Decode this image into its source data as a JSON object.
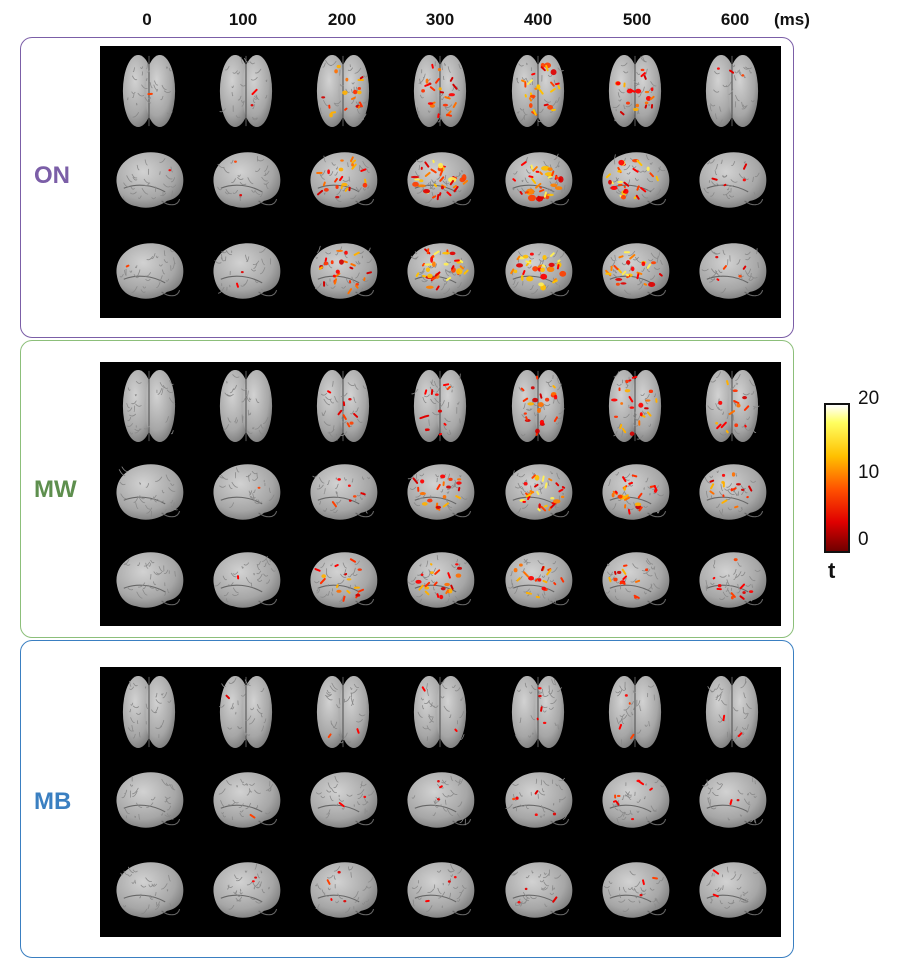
{
  "time_labels": [
    "0",
    "100",
    "200",
    "300",
    "400",
    "500",
    "600"
  ],
  "time_unit": "(ms)",
  "conditions": [
    {
      "label": "ON",
      "color": "#7b5ea7",
      "activation": [
        [
          0.02,
          0.05,
          0.45,
          0.55,
          0.7,
          0.5,
          0.08
        ],
        [
          0.02,
          0.04,
          0.55,
          0.85,
          0.85,
          0.7,
          0.1
        ],
        [
          0.02,
          0.04,
          0.6,
          0.85,
          0.75,
          0.65,
          0.12
        ]
      ]
    },
    {
      "label": "MW",
      "color": "#5e8f4e",
      "activation": [
        [
          0.0,
          0.0,
          0.2,
          0.3,
          0.55,
          0.55,
          0.35
        ],
        [
          0.0,
          0.02,
          0.15,
          0.5,
          0.7,
          0.55,
          0.4
        ],
        [
          0.0,
          0.02,
          0.4,
          0.55,
          0.45,
          0.35,
          0.25
        ]
      ]
    },
    {
      "label": "MB",
      "color": "#3a7fc1",
      "activation": [
        [
          0.0,
          0.02,
          0.06,
          0.06,
          0.12,
          0.1,
          0.06
        ],
        [
          0.0,
          0.02,
          0.05,
          0.08,
          0.15,
          0.2,
          0.05
        ],
        [
          0.0,
          0.04,
          0.1,
          0.08,
          0.08,
          0.08,
          0.04
        ]
      ]
    }
  ],
  "views": [
    "top",
    "lateral",
    "lateral"
  ],
  "colorbar": {
    "ticks": [
      "20",
      "10",
      "0"
    ],
    "label": "t"
  }
}
